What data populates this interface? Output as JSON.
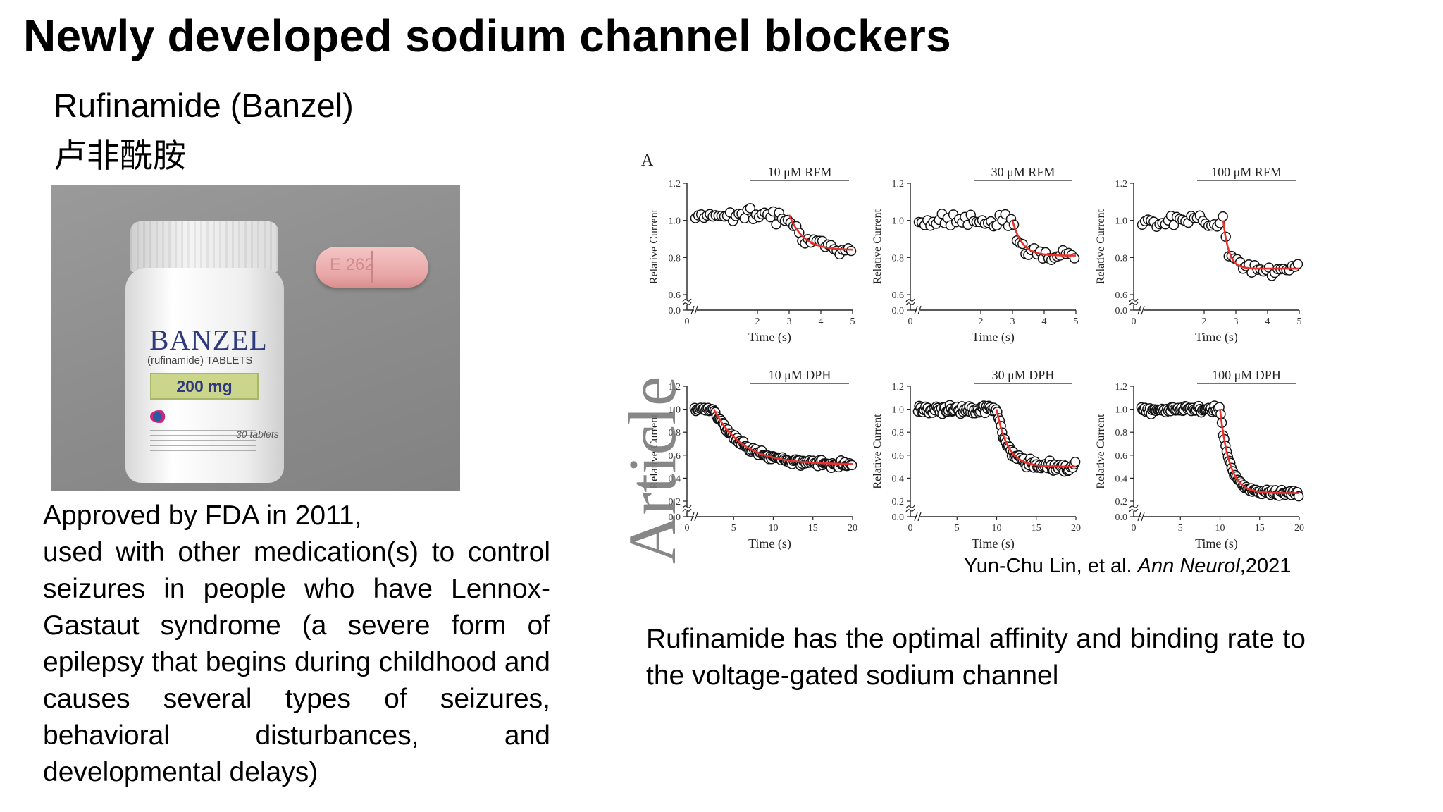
{
  "slide": {
    "title": "Newly developed sodium channel blockers",
    "drug_name": "Rufinamide (Banzel)",
    "drug_name_cn": "卢非酰胺",
    "photo": {
      "brand": "BANZEL",
      "generic": "(rufinamide) TABLETS",
      "dose": "200 mg",
      "count": "30 tablets",
      "pill_mark": "E 262"
    },
    "approval_line": "Approved by FDA in 2011,",
    "description": "used with other medication(s) to control seizures in people who have Lennox-Gastaut syndrome (a severe form of epilepsy that begins during childhood and causes several types of seizures, behavioral disturbances, and developmental delays)",
    "citation_author": "Yun-Chu Lin, et al.",
    "citation_journal": "Ann Neurol",
    "citation_year": ",2021",
    "conclusion_part1": "Rufinamide has the optimal affinity and binding",
    "conclusion_part2": "rate to the voltage-gated sodium channel"
  },
  "figure": {
    "panel_label": "A",
    "watermark": "Article",
    "ylabel": "Relative Current",
    "xlabel": "Time (s)",
    "colors": {
      "fit": "#e8322e",
      "marker_edge": "#111111",
      "marker_fill": "#ffffff"
    }
  },
  "chart_data": [
    {
      "type": "scatter",
      "title": "10 μM RFM",
      "xlabel": "Time (s)",
      "ylabel": "Relative Current",
      "xlim": [
        0,
        5
      ],
      "ylim": [
        0,
        1.2
      ],
      "axis_break": true,
      "xticks": [
        0,
        2,
        3,
        4,
        5
      ],
      "yticks": [
        0.0,
        0.6,
        0.8,
        1.0,
        1.2
      ],
      "baseline": 1.03,
      "steady": 0.84,
      "onset": 3.0,
      "tau": 0.45,
      "noise": 0.035,
      "n_points": 55,
      "series": [
        {
          "values_description": "baseline ~1.03 until ~3 s, then exponential decay to ~0.84"
        }
      ]
    },
    {
      "type": "scatter",
      "title": "30 μM RFM",
      "xlabel": "Time (s)",
      "ylabel": "Relative Current",
      "xlim": [
        0,
        5
      ],
      "ylim": [
        0,
        1.2
      ],
      "axis_break": true,
      "xticks": [
        0,
        2,
        3,
        4,
        5
      ],
      "yticks": [
        0.0,
        0.6,
        0.8,
        1.0,
        1.2
      ],
      "baseline": 1.0,
      "steady": 0.81,
      "onset": 3.0,
      "tau": 0.3,
      "noise": 0.035,
      "n_points": 55
    },
    {
      "type": "scatter",
      "title": "100 μM RFM",
      "xlabel": "Time (s)",
      "ylabel": "Relative Current",
      "xlim": [
        0,
        5
      ],
      "ylim": [
        0,
        1.2
      ],
      "axis_break": true,
      "xticks": [
        0,
        2,
        3,
        4,
        5
      ],
      "yticks": [
        0.0,
        0.6,
        0.8,
        1.0,
        1.2
      ],
      "baseline": 1.0,
      "steady": 0.74,
      "onset": 2.6,
      "tau": 0.18,
      "noise": 0.035,
      "n_points": 55
    },
    {
      "type": "scatter",
      "title": "10 μM DPH",
      "xlabel": "Time (s)",
      "ylabel": "Relative Current",
      "xlim": [
        0,
        20
      ],
      "ylim": [
        0,
        1.2
      ],
      "axis_break": true,
      "xticks": [
        0,
        5,
        10,
        15,
        20
      ],
      "yticks": [
        0.0,
        0.2,
        0.4,
        0.6,
        0.8,
        1.0,
        1.2
      ],
      "baseline": 1.0,
      "steady": 0.52,
      "onset": 2.5,
      "tau": 3.6,
      "noise": 0.025,
      "n_points": 130
    },
    {
      "type": "scatter",
      "title": "30 μM DPH",
      "xlabel": "Time (s)",
      "ylabel": "Relative Current",
      "xlim": [
        0,
        20
      ],
      "ylim": [
        0,
        1.2
      ],
      "axis_break": true,
      "xticks": [
        0,
        5,
        10,
        15,
        20
      ],
      "yticks": [
        0.0,
        0.2,
        0.4,
        0.6,
        0.8,
        1.0,
        1.2
      ],
      "baseline": 1.0,
      "steady": 0.5,
      "onset": 10.0,
      "tau": 1.4,
      "noise": 0.04,
      "n_points": 130
    },
    {
      "type": "scatter",
      "title": "100 μM DPH",
      "xlabel": "Time (s)",
      "ylabel": "Relative Current",
      "xlim": [
        0,
        20
      ],
      "ylim": [
        0,
        1.2
      ],
      "axis_break": true,
      "xticks": [
        0,
        5,
        10,
        15,
        20
      ],
      "yticks": [
        0.0,
        0.2,
        0.4,
        0.6,
        0.8,
        1.0,
        1.2
      ],
      "baseline": 1.0,
      "steady": 0.27,
      "onset": 10.0,
      "tau": 1.2,
      "noise": 0.03,
      "n_points": 130
    }
  ]
}
